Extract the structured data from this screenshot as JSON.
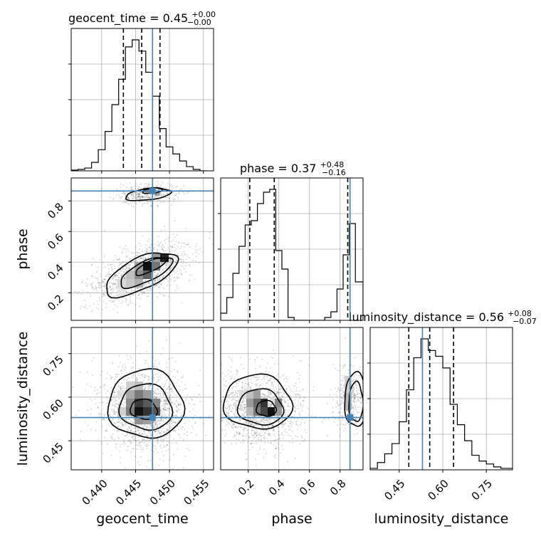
{
  "chart_data": {
    "type": "corner",
    "parameters": [
      "geocent_time",
      "phase",
      "luminosity_distance"
    ],
    "titles": [
      {
        "param": "geocent_time",
        "prefix": "geocent_time = ",
        "median": "0.45",
        "plus": "+0.00",
        "minus": "−0.00"
      },
      {
        "param": "phase",
        "prefix": "phase = ",
        "median": "0.37",
        "plus": "+0.48",
        "minus": "−0.16"
      },
      {
        "param": "luminosity_distance",
        "prefix": "luminosity_distance = ",
        "median": "0.56",
        "plus": "+0.08",
        "minus": "−0.07"
      }
    ],
    "ranges": {
      "geocent_time": [
        0.4355,
        0.4565
      ],
      "phase": [
        0.02,
        0.95
      ],
      "luminosity_distance": [
        0.35,
        0.84
      ]
    },
    "ticks": {
      "geocent_time": [
        0.44,
        0.445,
        0.45,
        0.455
      ],
      "geocent_time_labels": [
        "0.440",
        "0.445",
        "0.450",
        "0.455"
      ],
      "phase": [
        0.2,
        0.4,
        0.6,
        0.8
      ],
      "phase_labels": [
        "0.2",
        "0.4",
        "0.6",
        "0.8"
      ],
      "luminosity_distance": [
        0.45,
        0.6,
        0.75
      ],
      "luminosity_distance_labels": [
        "0.45",
        "0.60",
        "0.75"
      ]
    },
    "truths": {
      "geocent_time": 0.4475,
      "phase": 0.865,
      "luminosity_distance": 0.53
    },
    "quantiles": {
      "geocent_time": [
        0.4432,
        0.4459,
        0.4486
      ],
      "phase": [
        0.21,
        0.37,
        0.85
      ],
      "luminosity_distance": [
        0.483,
        0.555,
        0.637
      ]
    },
    "histograms": {
      "geocent_time": {
        "edges": [
          0.4355,
          0.4365,
          0.4375,
          0.4385,
          0.4395,
          0.4405,
          0.4415,
          0.4425,
          0.4435,
          0.4445,
          0.4455,
          0.4465,
          0.4475,
          0.4485,
          0.4495,
          0.4505,
          0.4515,
          0.4525,
          0.4535,
          0.4545,
          0.4555
        ],
        "counts": [
          0.005,
          0.01,
          0.02,
          0.06,
          0.15,
          0.28,
          0.47,
          0.65,
          0.88,
          0.93,
          0.85,
          0.7,
          0.53,
          0.3,
          0.17,
          0.12,
          0.07,
          0.03,
          0.01,
          0.0
        ]
      },
      "phase": {
        "edges": [
          0.02,
          0.06,
          0.1,
          0.14,
          0.18,
          0.22,
          0.26,
          0.3,
          0.34,
          0.38,
          0.42,
          0.46,
          0.5,
          0.54,
          0.58,
          0.62,
          0.66,
          0.7,
          0.74,
          0.78,
          0.82,
          0.86,
          0.9,
          0.95
        ],
        "counts": [
          0.05,
          0.16,
          0.33,
          0.52,
          0.67,
          0.7,
          0.82,
          0.9,
          0.92,
          0.49,
          0.36,
          0.02,
          0.0,
          0.0,
          0.0,
          0.0,
          0.0,
          0.02,
          0.06,
          0.22,
          0.46,
          0.68,
          0.27
        ]
      },
      "luminosity_distance": {
        "edges": [
          0.35,
          0.375,
          0.4,
          0.425,
          0.45,
          0.475,
          0.5,
          0.525,
          0.55,
          0.575,
          0.6,
          0.625,
          0.65,
          0.675,
          0.7,
          0.725,
          0.75,
          0.775,
          0.8,
          0.84
        ],
        "counts": [
          0.01,
          0.05,
          0.11,
          0.18,
          0.33,
          0.55,
          0.77,
          0.9,
          0.82,
          0.78,
          0.7,
          0.45,
          0.31,
          0.2,
          0.1,
          0.06,
          0.04,
          0.02,
          0.01
        ]
      }
    },
    "grid": true
  }
}
